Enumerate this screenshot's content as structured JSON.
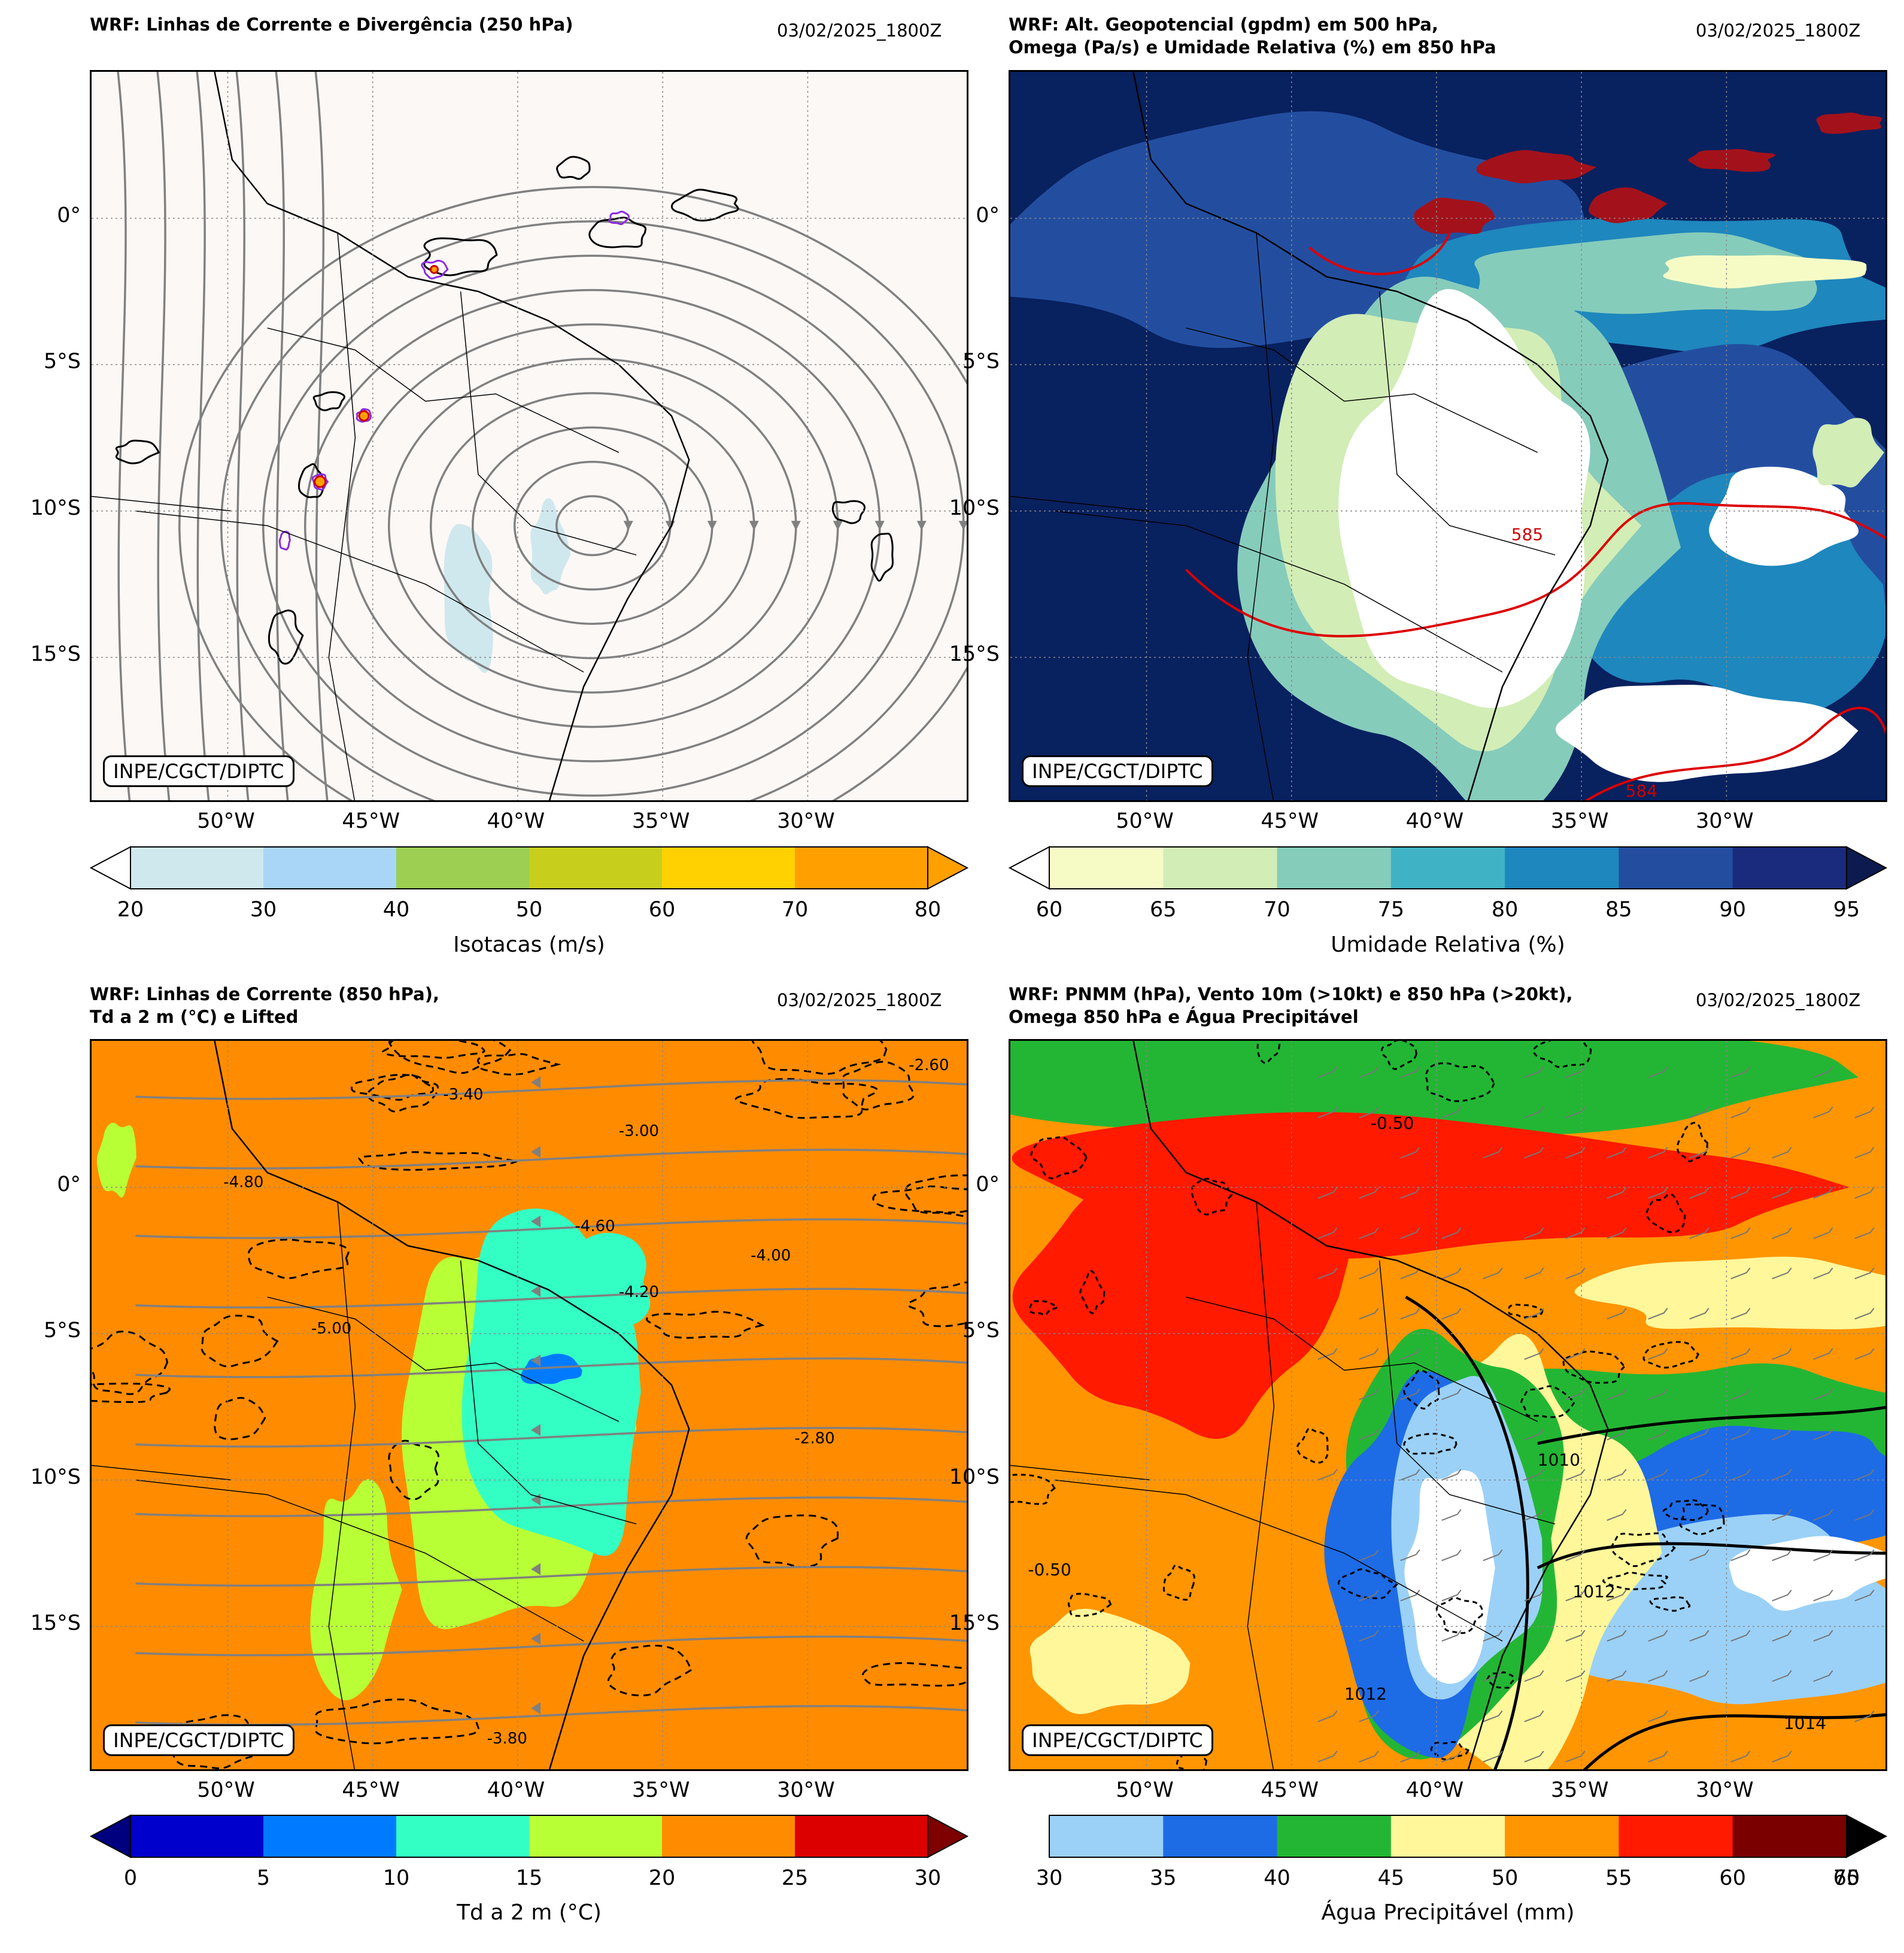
{
  "panels": [
    {
      "id": "p1",
      "title": "WRF: Linhas de Corrente e Divergência (250 hPa)",
      "datetime": "03/02/2025_1800Z",
      "credit": "INPE/CGCT/DIPTC",
      "background": "#fcf8f6",
      "colorbar": {
        "label": "Isotacas (m/s)",
        "ticks": [
          "20",
          "30",
          "40",
          "50",
          "60",
          "70",
          "80"
        ],
        "colors": [
          "#cfe8ee",
          "#a9d6f7",
          "#9ccf52",
          "#c7cf1c",
          "#ffd100",
          "#ff9f00"
        ],
        "under": "#ffffff",
        "over": "#ff9f00",
        "extend": "both"
      }
    },
    {
      "id": "p2",
      "title": "WRF: Alt. Geopotencial (gpdm) em 500 hPa,\nOmega (Pa/s) e Umidade Relativa (%) em 850 hPa",
      "datetime": "03/02/2025_1800Z",
      "credit": "INPE/CGCT/DIPTC",
      "background": "#08215f",
      "contour_labels": [
        "584",
        "585"
      ],
      "colorbar": {
        "label": "Umidade Relativa (%)",
        "ticks": [
          "60",
          "65",
          "70",
          "75",
          "80",
          "85",
          "90",
          "95"
        ],
        "colors": [
          "#f6fbc6",
          "#d2edb6",
          "#86ccbb",
          "#3fb3c5",
          "#1e87bd",
          "#234ea0",
          "#1a2b7d"
        ],
        "under": "#ffffff",
        "over": "#0c1a4f",
        "extend": "both"
      }
    },
    {
      "id": "p3",
      "title": "WRF: Linhas de Corrente (850 hPa),\nTd a 2 m (°C) e Lifted",
      "datetime": "03/02/2025_1800Z",
      "credit": "INPE/CGCT/DIPTC",
      "background": "#ff8c00",
      "contour_labels": [
        "-2.60",
        "-3.00",
        "-3.40",
        "-4.00",
        "-4.20",
        "-4.60",
        "-4.80",
        "-2.80",
        "-3.80",
        "-5.00"
      ],
      "colorbar": {
        "label": "Td a 2 m (°C)",
        "ticks": [
          "0",
          "5",
          "10",
          "15",
          "20",
          "25",
          "30"
        ],
        "colors": [
          "#0000cd",
          "#007bff",
          "#33ffc4",
          "#b8ff36",
          "#ff8c00",
          "#dd0000"
        ],
        "under": "#00007f",
        "over": "#7f0000",
        "extend": "both"
      }
    },
    {
      "id": "p4",
      "title": "WRF: PNMM (hPa), Vento 10m (>10kt) e 850 hPa (>20kt),\nOmega 850 hPa e Água Precipitável",
      "datetime": "03/02/2025_1800Z",
      "credit": "INPE/CGCT/DIPTC",
      "background": "#ff9500",
      "contour_labels": [
        "1010",
        "1012",
        "1014",
        "1012",
        "-0.50",
        "-0.50"
      ],
      "colorbar": {
        "label": "Água Precipitável (mm)",
        "ticks": [
          "30",
          "35",
          "40",
          "45",
          "50",
          "55",
          "60",
          "65"
        ],
        "overlap_tick": "70",
        "colors": [
          "#9bd1f7",
          "#1e6be6",
          "#23b634",
          "#fff79a",
          "#ff9500",
          "#ff1a00",
          "#7a0000"
        ],
        "over": "#000000",
        "extend": "max"
      }
    }
  ],
  "axes": {
    "y_ticks": [
      "0°",
      "5°S",
      "10°S",
      "15°S"
    ],
    "x_ticks": [
      "50°W",
      "45°W",
      "40°W",
      "35°W",
      "30°W"
    ]
  }
}
